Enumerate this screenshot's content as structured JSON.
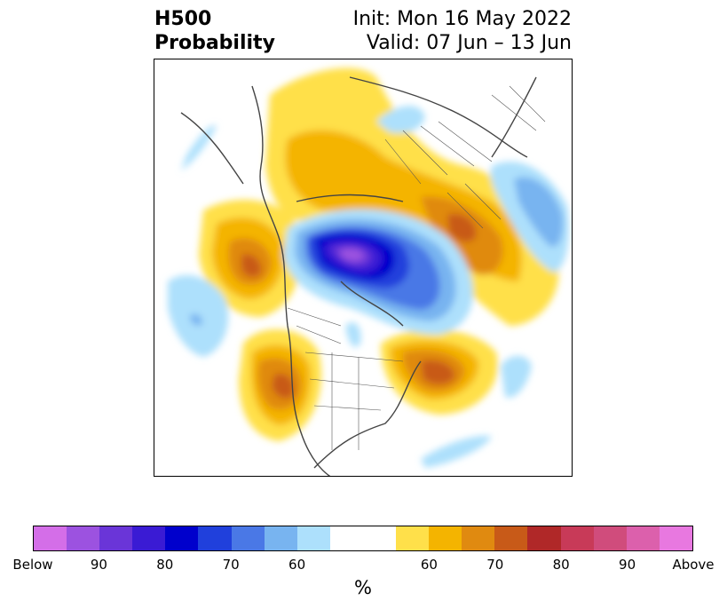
{
  "title": {
    "left_line1": "H500",
    "left_line2": "Probability",
    "right_line1": "Init: Mon 16 May 2022",
    "right_line2": "Valid: 07 Jun – 13 Jun"
  },
  "map": {
    "description_icon": "polar-stereographic-map",
    "projection": "north-polar-stereographic"
  },
  "colorbar": {
    "unit": "%",
    "colors": [
      "#d46ee8",
      "#9c52e0",
      "#6a35d8",
      "#3a1bd4",
      "#0000cc",
      "#2040dc",
      "#4a78e6",
      "#78b4f0",
      "#ade0fc",
      "#ffffff",
      "#ffffff",
      "#ffe04a",
      "#f4b400",
      "#e08a10",
      "#c85a18",
      "#b02828",
      "#c83a58",
      "#d04c7c",
      "#dc60ac",
      "#e878e0"
    ],
    "ticks": [
      "Below",
      "90",
      "80",
      "70",
      "60",
      "",
      "60",
      "70",
      "80",
      "90",
      "Above"
    ]
  }
}
